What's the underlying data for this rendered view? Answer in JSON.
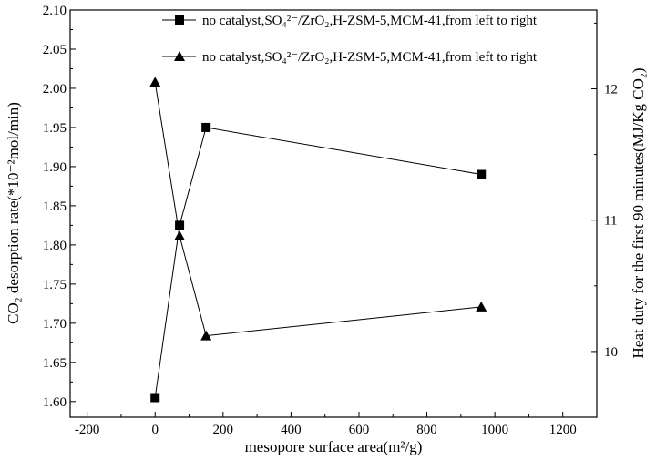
{
  "chart_data": {
    "type": "scatter",
    "xlabel": "mesopore surface area(m²/g)",
    "ylabel_left": "CO₂ desorption rate(*10⁻²mol/min)",
    "ylabel_right": "Heat duty for the first 90 minutes(MJ/Kg CO₂)",
    "xlim": [
      -250,
      1300
    ],
    "ylim_left": [
      1.58,
      2.1
    ],
    "ylim_right": [
      9.5,
      12.6
    ],
    "x_ticks": [
      -200,
      0,
      200,
      400,
      600,
      800,
      1000,
      1200
    ],
    "y_ticks_left": [
      1.6,
      1.65,
      1.7,
      1.75,
      1.8,
      1.85,
      1.9,
      1.95,
      2.0,
      2.05,
      2.1
    ],
    "y_ticks_right": [
      10,
      11,
      12
    ],
    "legend_position": "top-right",
    "series": [
      {
        "name": "no catalyst,SO₄²⁻/ZrO₂,H-ZSM-5,MCM-41,from left to right",
        "marker": "square",
        "axis": "left",
        "x": [
          0,
          72,
          150,
          960
        ],
        "y": [
          1.605,
          1.825,
          1.95,
          1.89
        ]
      },
      {
        "name": "no catalyst,SO₄²⁻/ZrO₂,H-ZSM-5,MCM-41,from left to right",
        "marker": "triangle",
        "axis": "right",
        "x": [
          0,
          72,
          150,
          960
        ],
        "y": [
          12.05,
          10.88,
          10.12,
          10.34
        ]
      }
    ]
  }
}
